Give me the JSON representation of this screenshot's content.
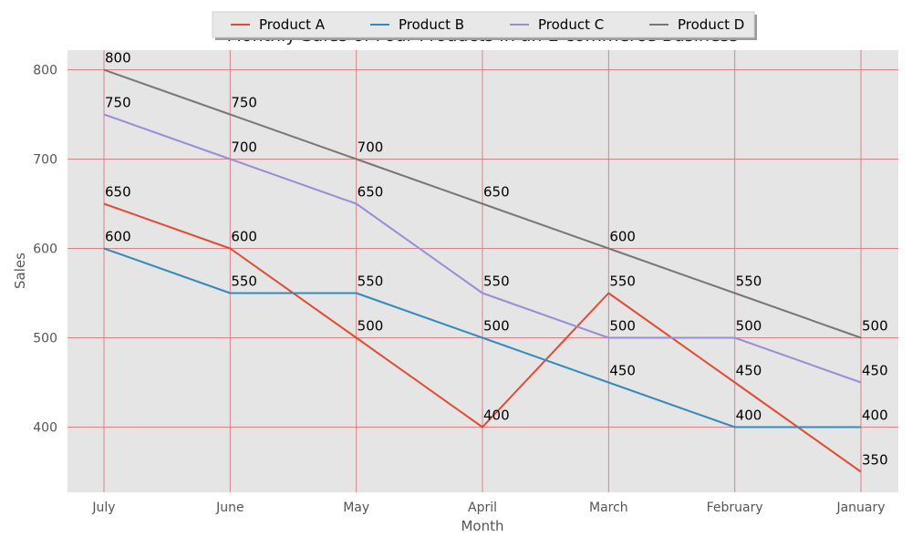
{
  "chart_data": {
    "type": "line",
    "title": "Monthly Sales of Four Products in an E-commerce Business",
    "xlabel": "Month",
    "ylabel": "Sales",
    "categories": [
      "July",
      "June",
      "May",
      "April",
      "March",
      "February",
      "January"
    ],
    "ylim": [
      327,
      822
    ],
    "yticks": [
      400,
      500,
      600,
      700,
      800
    ],
    "grid": true,
    "legend_position": "top-center",
    "background_color": "#e5e5e5",
    "grid_color": "#d9828a",
    "series": [
      {
        "name": "Product A",
        "color": "#e24a33",
        "values": [
          650,
          600,
          500,
          400,
          550,
          450,
          350
        ]
      },
      {
        "name": "Product B",
        "color": "#348abd",
        "values": [
          600,
          550,
          550,
          500,
          450,
          400,
          400
        ]
      },
      {
        "name": "Product C",
        "color": "#988ed5",
        "values": [
          750,
          700,
          650,
          550,
          500,
          500,
          450
        ]
      },
      {
        "name": "Product D",
        "color": "#777777",
        "values": [
          800,
          750,
          700,
          650,
          600,
          550,
          500
        ]
      }
    ]
  }
}
